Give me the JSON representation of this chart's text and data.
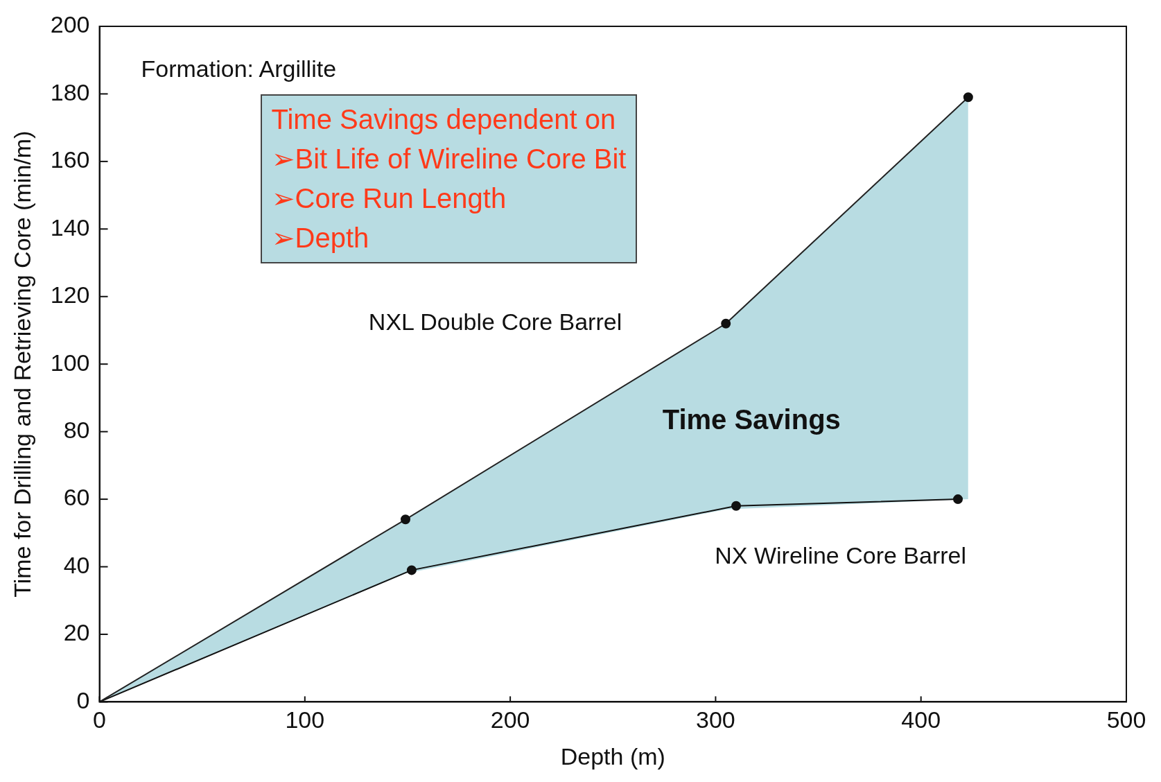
{
  "chart_data": {
    "type": "line",
    "xlabel": "Depth (m)",
    "ylabel": "Time for Drilling and Retrieving Core (min/m)",
    "xlim": [
      0,
      500
    ],
    "xticks": [
      0,
      100,
      200,
      300,
      400,
      500
    ],
    "ylim": [
      0,
      200
    ],
    "yticks": [
      0,
      20,
      40,
      60,
      80,
      100,
      120,
      140,
      160,
      180,
      200
    ],
    "grid": false,
    "legend": false,
    "marker": "circle",
    "series": [
      {
        "name": "NXL Double Core Barrel",
        "color": "#222222",
        "x": [
          0,
          149,
          305,
          423
        ],
        "values": [
          0,
          54,
          112,
          179
        ],
        "lower": [
          0,
          38,
          57,
          60
        ],
        "upper": [
          0,
          54,
          112,
          179
        ]
      },
      {
        "name": "NX Wireline Core Barrel",
        "color": "#111111",
        "x": [
          0,
          152,
          310,
          418
        ],
        "values": [
          0,
          39,
          58,
          60
        ]
      }
    ],
    "annotations": [
      "Formation: Argillite",
      "Time Savings dependent on",
      "➢Bit Life of Wireline Core Bit",
      "➢Core Run Length",
      "➢Depth",
      "Time Savings"
    ]
  }
}
